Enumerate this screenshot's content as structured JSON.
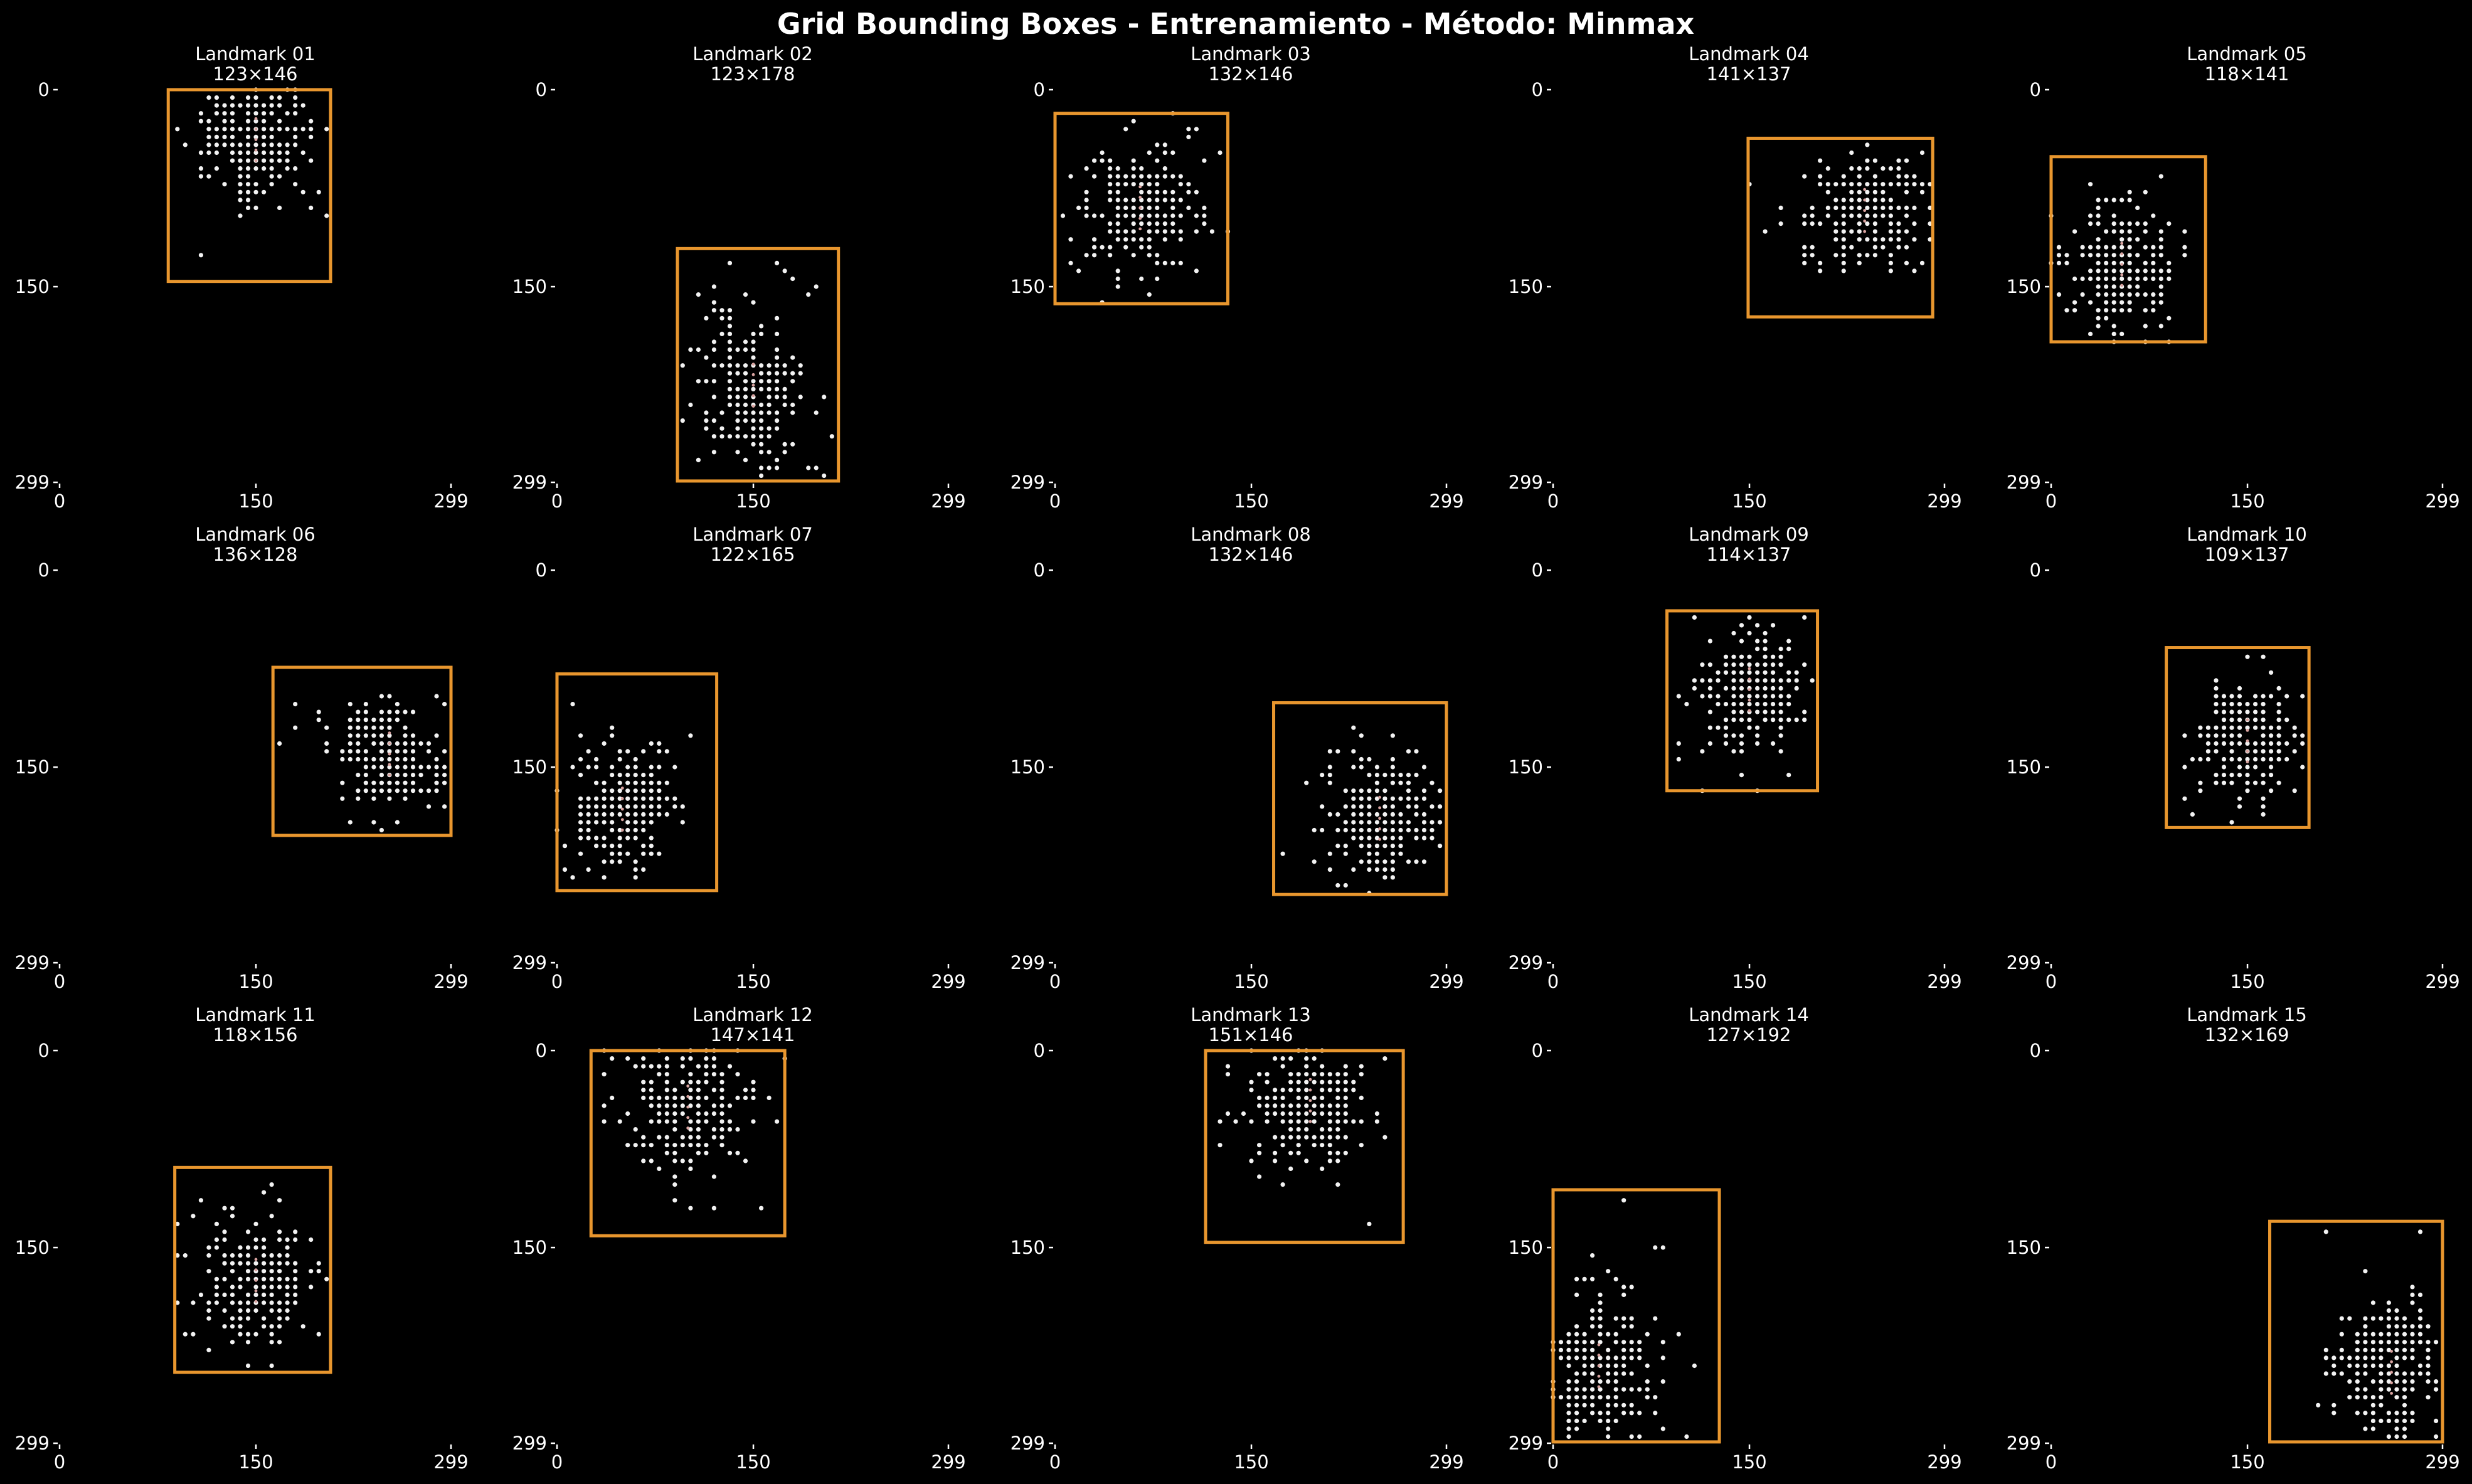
{
  "title": "Grid Bounding Boxes - Entrenamiento - Método: Minmax",
  "chart_data": {
    "type": "scatter",
    "grid_size": 300,
    "xlim": [
      0,
      299
    ],
    "ylim": [
      299,
      0
    ],
    "xticks": [
      "0",
      "150",
      "299"
    ],
    "yticks": [
      "0",
      "150",
      "299"
    ],
    "box_color": "#e8962e",
    "point_color": "#f2f2f2",
    "center_color": "#d9a3a0",
    "background": "#000000",
    "grid": false,
    "panels": [
      {
        "name": "Landmark 01",
        "size": "123×146",
        "box": [
          83,
          0,
          207,
          146
        ],
        "cx": 150,
        "cy": 38
      },
      {
        "name": "Landmark 02",
        "size": "123×178",
        "box": [
          92,
          121,
          215,
          298
        ],
        "cx": 150,
        "cy": 225
      },
      {
        "name": "Landmark 03",
        "size": "132×146",
        "box": [
          0,
          18,
          132,
          163
        ],
        "cx": 65,
        "cy": 90
      },
      {
        "name": "Landmark 04",
        "size": "141×137",
        "box": [
          149,
          37,
          290,
          173
        ],
        "cx": 238,
        "cy": 92
      },
      {
        "name": "Landmark 05",
        "size": "118×141",
        "box": [
          0,
          51,
          118,
          192
        ],
        "cx": 54,
        "cy": 133
      },
      {
        "name": "Landmark 06",
        "size": "136×128",
        "box": [
          163,
          74,
          299,
          202
        ],
        "cx": 252,
        "cy": 140
      },
      {
        "name": "Landmark 07",
        "size": "122×165",
        "box": [
          0,
          79,
          122,
          244
        ],
        "cx": 50,
        "cy": 182
      },
      {
        "name": "Landmark 08",
        "size": "132×146",
        "box": [
          167,
          101,
          299,
          247
        ],
        "cx": 248,
        "cy": 189
      },
      {
        "name": "Landmark 09",
        "size": "114×137",
        "box": [
          87,
          31,
          202,
          168
        ],
        "cx": 150,
        "cy": 91
      },
      {
        "name": "Landmark 10",
        "size": "109×137",
        "box": [
          88,
          59,
          197,
          196
        ],
        "cx": 150,
        "cy": 130
      },
      {
        "name": "Landmark 11",
        "size": "118×156",
        "box": [
          88,
          89,
          207,
          245
        ],
        "cx": 150,
        "cy": 175
      },
      {
        "name": "Landmark 12",
        "size": "147×141",
        "box": [
          26,
          0,
          174,
          141
        ],
        "cx": 100,
        "cy": 43
      },
      {
        "name": "Landmark 13",
        "size": "151×146",
        "box": [
          115,
          0,
          266,
          146
        ],
        "cx": 195,
        "cy": 38
      },
      {
        "name": "Landmark 14",
        "size": "127×192",
        "box": [
          0,
          106,
          127,
          298
        ],
        "cx": 35,
        "cy": 240
      },
      {
        "name": "Landmark 15",
        "size": "132×169",
        "box": [
          167,
          130,
          299,
          298
        ],
        "cx": 260,
        "cy": 245
      }
    ]
  }
}
